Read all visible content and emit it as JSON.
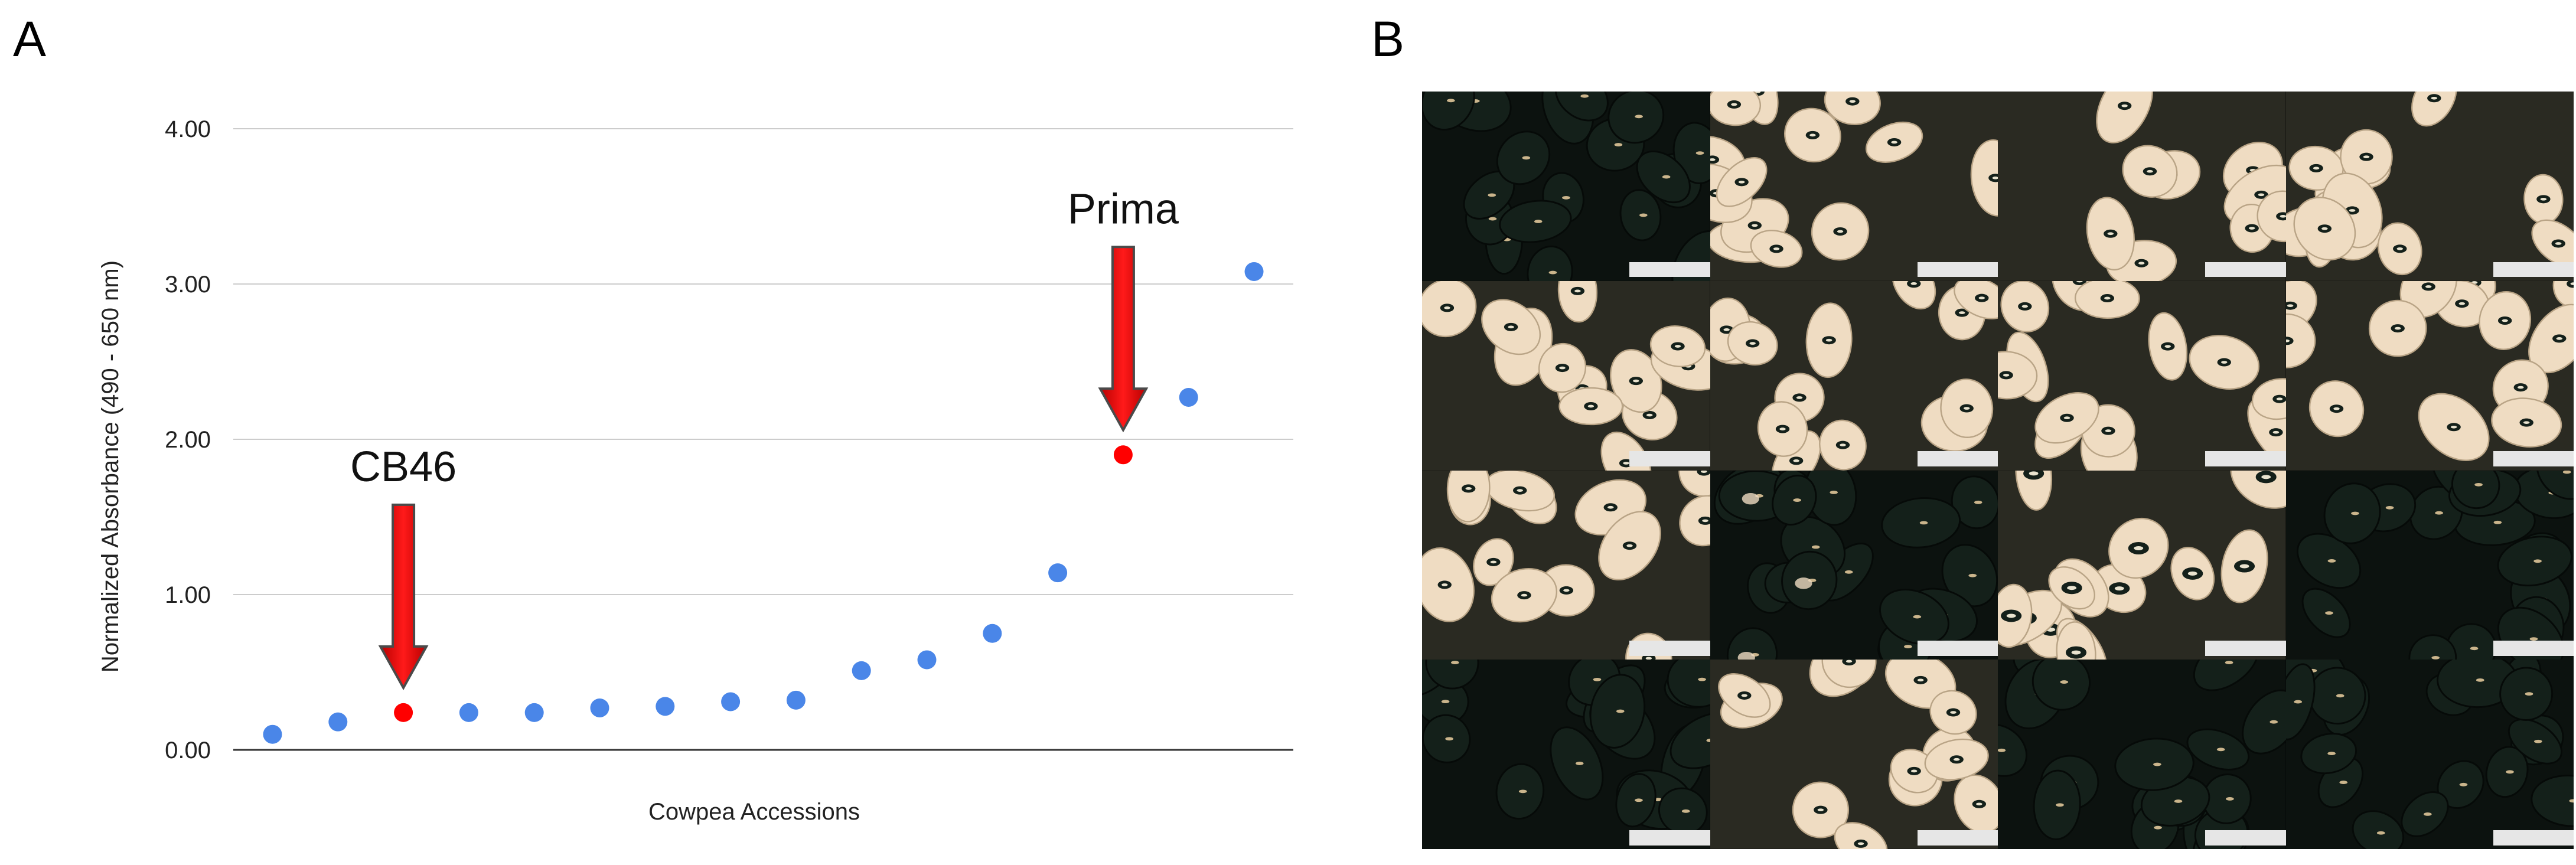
{
  "panels": {
    "a_label": "A",
    "b_label": "B"
  },
  "chart_data": {
    "type": "scatter",
    "title": "",
    "xlabel": "Cowpea Accessions",
    "ylabel": "Normalized Absorbance (490 - 650 nm)",
    "ylim": [
      0,
      4
    ],
    "yticks": [
      "0.00",
      "1.00",
      "2.00",
      "3.00",
      "4.00"
    ],
    "grid": true,
    "x": [
      1,
      2,
      3,
      4,
      5,
      6,
      7,
      8,
      9,
      10,
      11,
      12,
      13,
      14,
      15,
      16
    ],
    "y": [
      0.1,
      0.18,
      0.24,
      0.24,
      0.24,
      0.27,
      0.28,
      0.31,
      0.32,
      0.51,
      0.58,
      0.75,
      1.14,
      1.9,
      2.27,
      3.08
    ],
    "point_colors": [
      "#4a86e8",
      "#4a86e8",
      "#ff0000",
      "#4a86e8",
      "#4a86e8",
      "#4a86e8",
      "#4a86e8",
      "#4a86e8",
      "#4a86e8",
      "#4a86e8",
      "#4a86e8",
      "#4a86e8",
      "#4a86e8",
      "#ff0000",
      "#4a86e8",
      "#4a86e8"
    ],
    "annotations": [
      {
        "label": "CB46",
        "x": 3,
        "y": 0.24
      },
      {
        "label": "Prima",
        "x": 14,
        "y": 1.9
      }
    ]
  },
  "photo_grid": {
    "rows": 4,
    "cols": 4,
    "tiles": [
      "black",
      "eye",
      "eye-sparse",
      "eye",
      "eye",
      "eye",
      "eye",
      "eye",
      "eye",
      "black-mottled",
      "eye-dense",
      "black",
      "black",
      "eye",
      "black",
      "black"
    ]
  },
  "colors": {
    "series": "#4a86e8",
    "highlight": "#ff0000",
    "grid": "#cccccc",
    "seed_cream": "#efdcc2",
    "seed_black": "#14201a"
  }
}
